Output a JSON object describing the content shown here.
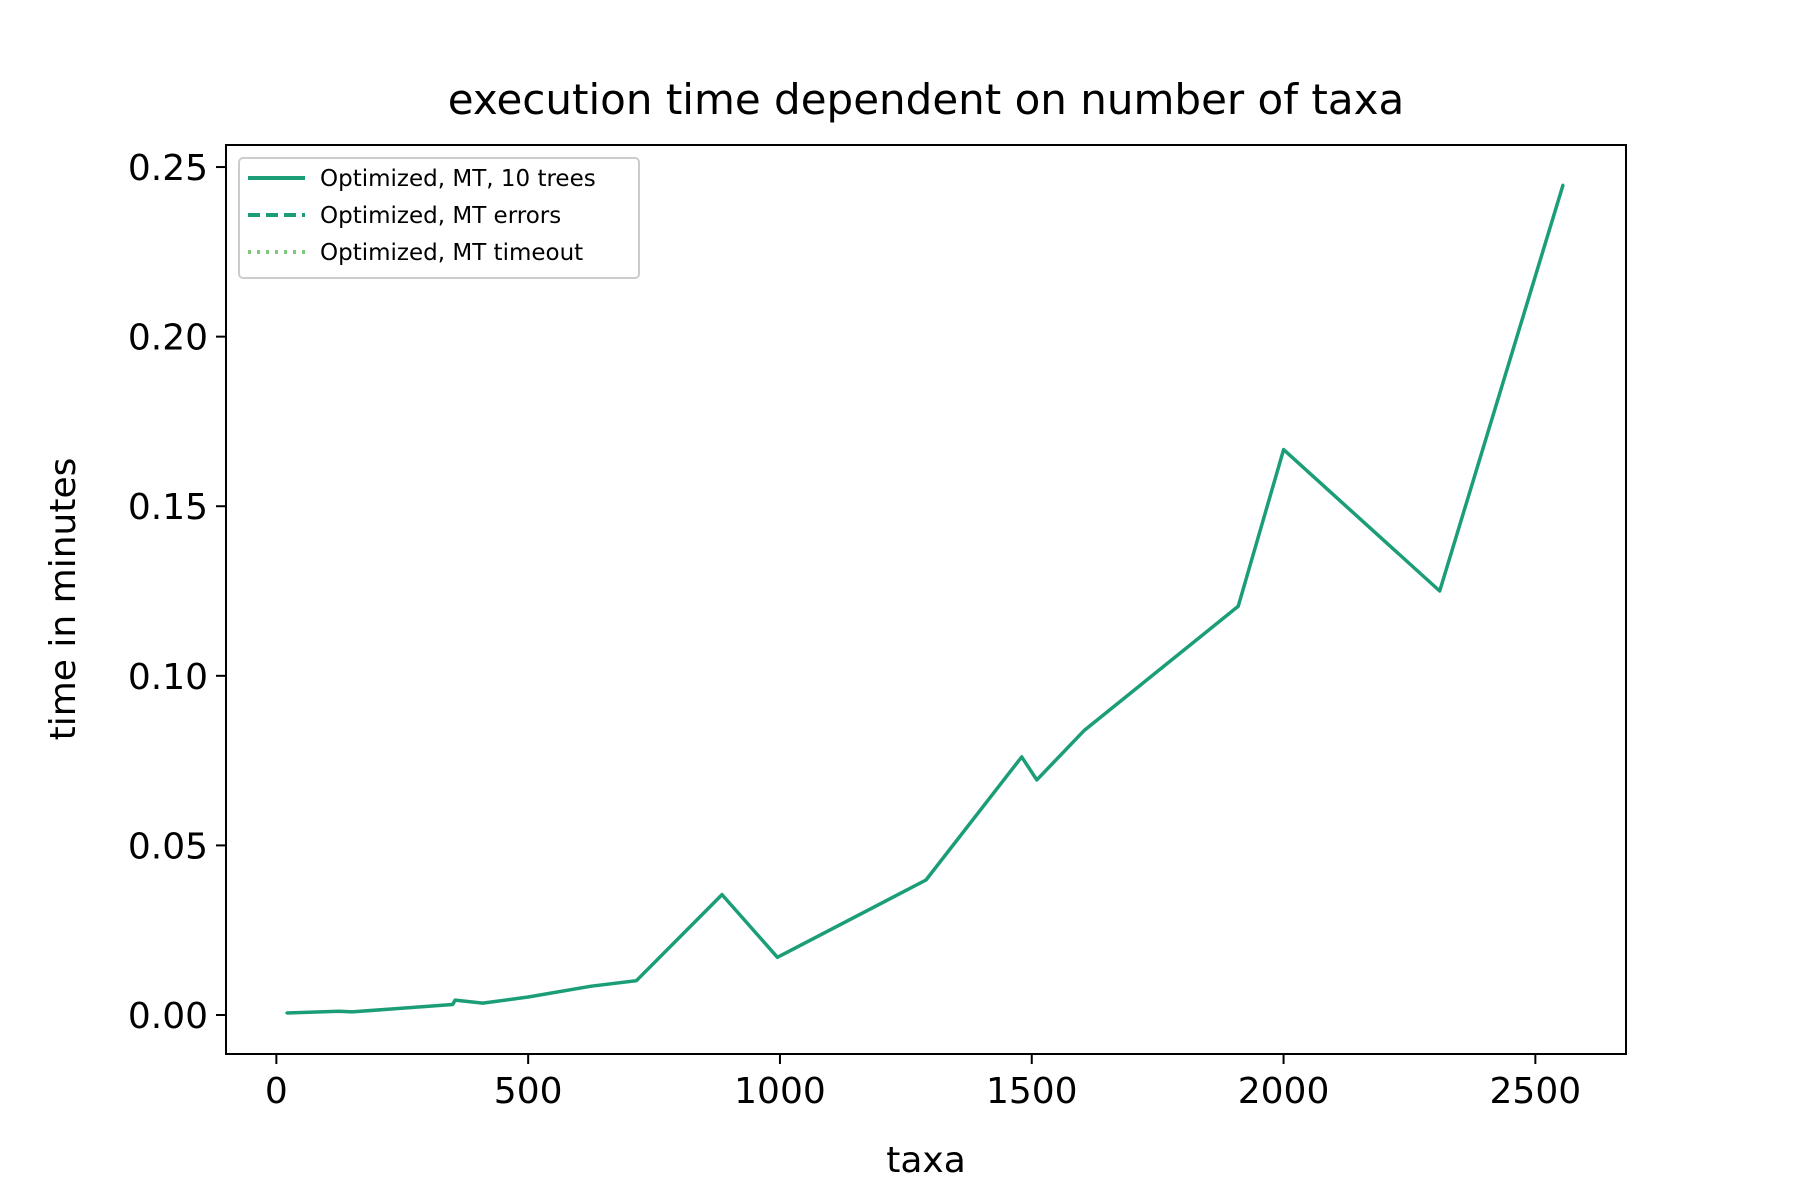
{
  "chart_data": {
    "type": "line",
    "title": "execution time dependent on number of taxa",
    "xlabel": "taxa",
    "ylabel": "time in minutes",
    "xlim": [
      -100,
      2680
    ],
    "ylim": [
      -0.0115,
      0.2565
    ],
    "xticks": [
      0,
      500,
      1000,
      1500,
      2000,
      2500
    ],
    "xtick_labels": [
      "0",
      "500",
      "1000",
      "1500",
      "2000",
      "2500"
    ],
    "yticks": [
      0.0,
      0.05,
      0.1,
      0.15,
      0.2,
      0.25
    ],
    "ytick_labels": [
      "0.00",
      "0.05",
      "0.10",
      "0.15",
      "0.20",
      "0.25"
    ],
    "grid": false,
    "legend_position": "top-left",
    "series": [
      {
        "name": "Optimized, MT, 10 trees",
        "style": "solid",
        "color": "#1b9e77",
        "x": [
          20,
          125,
          150,
          350,
          355,
          410,
          500,
          625,
          715,
          885,
          995,
          1290,
          1480,
          1510,
          1605,
          1910,
          2000,
          2310,
          2555
        ],
        "y": [
          0.0006,
          0.0011,
          0.0009,
          0.0031,
          0.0044,
          0.0035,
          0.0053,
          0.0085,
          0.0101,
          0.0355,
          0.017,
          0.0398,
          0.0761,
          0.0693,
          0.084,
          0.1205,
          0.1667,
          0.125,
          0.2448
        ]
      },
      {
        "name": "Optimized, MT errors",
        "style": "dashed",
        "color": "#1b9e77",
        "x": [],
        "y": []
      },
      {
        "name": "Optimized, MT timeout",
        "style": "dotted",
        "color": "#7fc97f",
        "x": [],
        "y": []
      }
    ]
  }
}
